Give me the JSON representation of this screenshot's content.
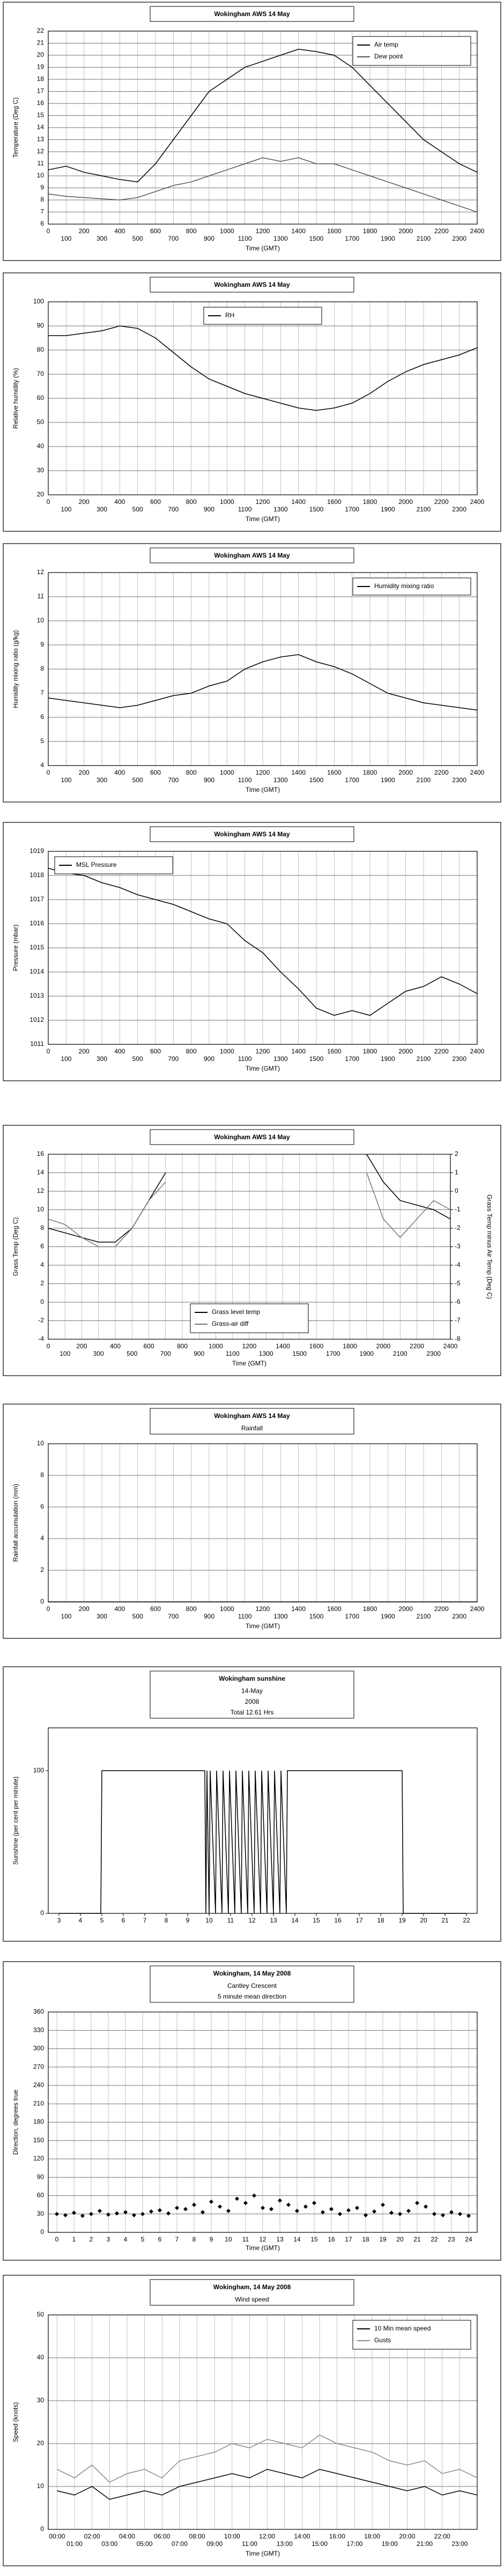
{
  "chart_data": [
    {
      "type": "line",
      "title": "Wokingham AWS 14 May",
      "x_label": "Time (GMT)",
      "y_label": "Temperature (Deg C)",
      "x": [
        0,
        100,
        200,
        300,
        400,
        500,
        600,
        700,
        800,
        900,
        1000,
        1100,
        1200,
        1300,
        1400,
        1500,
        1600,
        1700,
        1800,
        1900,
        2000,
        2100,
        2200,
        2300,
        2400
      ],
      "series": [
        {
          "name": "Air temp",
          "color": "#000000",
          "values": [
            10.5,
            10.8,
            10.3,
            10.0,
            9.7,
            9.5,
            11.0,
            13.0,
            15.0,
            17.0,
            18.0,
            19.0,
            19.5,
            20.0,
            20.5,
            20.3,
            20.0,
            19.0,
            17.5,
            16.0,
            14.5,
            13.0,
            12.0,
            11.0,
            10.3
          ]
        },
        {
          "name": "Dew point",
          "color": "#555555",
          "values": [
            8.5,
            8.3,
            8.2,
            8.1,
            8.0,
            8.2,
            8.7,
            9.2,
            9.5,
            10.0,
            10.5,
            11.0,
            11.5,
            11.2,
            11.5,
            11.0,
            11.0,
            10.5,
            10.0,
            9.5,
            9.0,
            8.5,
            8.0,
            7.5,
            7.0
          ]
        }
      ],
      "xlim": [
        0,
        2400
      ],
      "xticks": [
        0,
        100,
        200,
        300,
        400,
        500,
        600,
        700,
        800,
        900,
        1000,
        1100,
        1200,
        1300,
        1400,
        1500,
        1600,
        1700,
        1800,
        1900,
        2000,
        2100,
        2200,
        2300,
        2400
      ],
      "ylim": [
        6,
        22
      ],
      "yticks": [
        6,
        7,
        8,
        9,
        10,
        11,
        12,
        13,
        14,
        15,
        16,
        17,
        18,
        19,
        20,
        21,
        22
      ],
      "grid": true,
      "stagger": true,
      "legend": "upper right"
    },
    {
      "type": "line",
      "title": "Wokingham AWS 14 May",
      "x_label": "Time (GMT)",
      "y_label": "Relative humidity (%)",
      "x": [
        0,
        100,
        200,
        300,
        400,
        500,
        600,
        700,
        800,
        900,
        1000,
        1100,
        1200,
        1300,
        1400,
        1500,
        1600,
        1700,
        1800,
        1900,
        2000,
        2100,
        2200,
        2300,
        2400
      ],
      "series": [
        {
          "name": "RH",
          "color": "#000000",
          "values": [
            86,
            86,
            87,
            88,
            90,
            89,
            85,
            79,
            73,
            68,
            65,
            62,
            60,
            58,
            56,
            55,
            56,
            58,
            62,
            67,
            71,
            74,
            76,
            78,
            81
          ]
        }
      ],
      "xlim": [
        0,
        2400
      ],
      "xticks": [
        0,
        100,
        200,
        300,
        400,
        500,
        600,
        700,
        800,
        900,
        1000,
        1100,
        1200,
        1300,
        1400,
        1500,
        1600,
        1700,
        1800,
        1900,
        2000,
        2100,
        2200,
        2300,
        2400
      ],
      "ylim": [
        20,
        100
      ],
      "yticks": [
        20,
        30,
        40,
        50,
        60,
        70,
        80,
        90,
        100
      ],
      "grid": true,
      "stagger": true,
      "legend": "upper center"
    },
    {
      "type": "line",
      "title": "Wokingham AWS 14 May",
      "x_label": "Time (GMT)",
      "y_label": "Humidity mixing ratio (g/kg)",
      "x": [
        0,
        100,
        200,
        300,
        400,
        500,
        600,
        700,
        800,
        900,
        1000,
        1100,
        1200,
        1300,
        1400,
        1500,
        1600,
        1700,
        1800,
        1900,
        2000,
        2100,
        2200,
        2300,
        2400
      ],
      "series": [
        {
          "name": "Humidity mixing ratio",
          "color": "#000000",
          "values": [
            6.8,
            6.7,
            6.6,
            6.5,
            6.4,
            6.5,
            6.7,
            6.9,
            7.0,
            7.3,
            7.5,
            8.0,
            8.3,
            8.5,
            8.6,
            8.3,
            8.1,
            7.8,
            7.4,
            7.0,
            6.8,
            6.6,
            6.5,
            6.4,
            6.3
          ]
        }
      ],
      "xlim": [
        0,
        2400
      ],
      "xticks": [
        0,
        100,
        200,
        300,
        400,
        500,
        600,
        700,
        800,
        900,
        1000,
        1100,
        1200,
        1300,
        1400,
        1500,
        1600,
        1700,
        1800,
        1900,
        2000,
        2100,
        2200,
        2300,
        2400
      ],
      "ylim": [
        4,
        12
      ],
      "yticks": [
        4,
        5,
        6,
        7,
        8,
        9,
        10,
        11,
        12
      ],
      "grid": true,
      "stagger": true,
      "legend": "upper right"
    },
    {
      "type": "line",
      "title": "Wokingham AWS 14 May",
      "x_label": "Time (GMT)",
      "y_label": "Pressure (mbar)",
      "x": [
        0,
        100,
        200,
        300,
        400,
        500,
        600,
        700,
        800,
        900,
        1000,
        1100,
        1200,
        1300,
        1400,
        1500,
        1600,
        1700,
        1800,
        1900,
        2000,
        2100,
        2200,
        2300,
        2400
      ],
      "series": [
        {
          "name": "MSL Pressure",
          "color": "#000000",
          "values": [
            1018.3,
            1018.1,
            1018.0,
            1017.7,
            1017.5,
            1017.2,
            1017.0,
            1016.8,
            1016.5,
            1016.2,
            1016.0,
            1015.3,
            1014.8,
            1014.0,
            1013.3,
            1012.5,
            1012.2,
            1012.4,
            1012.2,
            1012.7,
            1013.2,
            1013.4,
            1013.8,
            1013.5,
            1013.1
          ]
        }
      ],
      "xlim": [
        0,
        2400
      ],
      "xticks": [
        0,
        100,
        200,
        300,
        400,
        500,
        600,
        700,
        800,
        900,
        1000,
        1100,
        1200,
        1300,
        1400,
        1500,
        1600,
        1700,
        1800,
        1900,
        2000,
        2100,
        2200,
        2300,
        2400
      ],
      "ylim": [
        1011,
        1019
      ],
      "yticks": [
        1011,
        1012,
        1013,
        1014,
        1015,
        1016,
        1017,
        1018,
        1019
      ],
      "grid": true,
      "stagger": true,
      "legend": "upper left"
    },
    {
      "type": "line",
      "title": "Wokingham AWS 14 May",
      "x_label": "Time (GMT)",
      "y_label": "Grass Temp (Deg C)",
      "y2_label": "Grass Temp minus Air Temp (Deg C)",
      "x": [
        0,
        100,
        200,
        300,
        400,
        500,
        600,
        700,
        800,
        900,
        1000,
        1100,
        1200,
        1300,
        1400,
        1500,
        1600,
        1700,
        1800,
        1900,
        2000,
        2100,
        2200,
        2300,
        2400
      ],
      "series": [
        {
          "name": "Grass level temp",
          "color": "#000000",
          "values": [
            8,
            7.5,
            7,
            6.5,
            6.5,
            8,
            11,
            14,
            null,
            null,
            null,
            null,
            null,
            null,
            null,
            null,
            null,
            null,
            null,
            16,
            13,
            11,
            10.5,
            10,
            9
          ]
        },
        {
          "name": "Grass-air diff",
          "color": "#777777",
          "axis": "y2",
          "values": [
            -1.5,
            -1.8,
            -2.5,
            -3,
            -3,
            -2,
            -0.5,
            0.5,
            null,
            null,
            null,
            null,
            null,
            null,
            null,
            null,
            null,
            null,
            null,
            1,
            -1.5,
            -2.5,
            -1.5,
            -0.5,
            -1
          ]
        }
      ],
      "xlim": [
        0,
        2400
      ],
      "xticks": [
        0,
        100,
        200,
        300,
        400,
        500,
        600,
        700,
        800,
        900,
        1000,
        1100,
        1200,
        1300,
        1400,
        1500,
        1600,
        1700,
        1800,
        1900,
        2000,
        2100,
        2200,
        2300,
        2400
      ],
      "ylim": [
        -4,
        16
      ],
      "yticks": [
        -4,
        -2,
        0,
        2,
        4,
        6,
        8,
        10,
        12,
        14,
        16
      ],
      "y2lim": [
        -8,
        2
      ],
      "y2ticks": [
        -8,
        -7,
        -6,
        -5,
        -4,
        -3,
        -2,
        -1,
        0,
        1,
        2
      ],
      "grid": true,
      "stagger": true,
      "legend": "lower center"
    },
    {
      "type": "line",
      "title": "Wokingham AWS 14 May",
      "subtitles": [
        "Rainfall"
      ],
      "x_label": "Time (GMT)",
      "y_label": "Rainfall accumulation (mm)",
      "x": [
        0,
        2400
      ],
      "series": [
        {
          "color": "#000000",
          "values": [
            0,
            0
          ]
        }
      ],
      "xlim": [
        0,
        2400
      ],
      "xticks": [
        0,
        100,
        200,
        300,
        400,
        500,
        600,
        700,
        800,
        900,
        1000,
        1100,
        1200,
        1300,
        1400,
        1500,
        1600,
        1700,
        1800,
        1900,
        2000,
        2100,
        2200,
        2300,
        2400
      ],
      "ylim": [
        0,
        10
      ],
      "yticks": [
        0,
        2,
        4,
        6,
        8,
        10
      ],
      "grid": true,
      "stagger": true
    },
    {
      "type": "line",
      "title": "Wokingham sunshine",
      "subtitles": [
        "14-May",
        "2008",
        "Total 12.61 Hrs"
      ],
      "y_label": "Sunshine (per cent per minute)",
      "x": [
        3,
        4.95,
        5,
        9.8,
        9.85,
        9.9,
        10.0,
        10.05,
        10.3,
        10.35,
        10.6,
        10.65,
        10.9,
        10.95,
        11.2,
        11.25,
        11.5,
        11.55,
        11.8,
        11.85,
        12.1,
        12.15,
        12.4,
        12.45,
        12.7,
        12.75,
        13.0,
        13.05,
        13.3,
        13.35,
        13.6,
        13.65,
        19,
        19.05,
        22
      ],
      "series": [
        {
          "color": "#000000",
          "values": [
            0,
            0,
            100,
            100,
            0,
            100,
            0,
            100,
            0,
            100,
            0,
            100,
            0,
            100,
            0,
            100,
            0,
            100,
            0,
            100,
            0,
            100,
            0,
            100,
            0,
            100,
            0,
            100,
            0,
            100,
            0,
            100,
            100,
            0,
            0
          ]
        }
      ],
      "xlim": [
        2.5,
        22.5
      ],
      "xticks": [
        3,
        4,
        5,
        6,
        7,
        8,
        9,
        10,
        11,
        12,
        13,
        14,
        15,
        16,
        17,
        18,
        19,
        20,
        21,
        22
      ],
      "ylim": [
        0,
        130
      ],
      "yticks": [
        0,
        100
      ],
      "grid": false
    },
    {
      "type": "scatter",
      "title": "Wokingham,  14 May 2008",
      "subtitles": [
        "Cantley Crescent",
        "5 minute mean direction"
      ],
      "x_label": "Time (GMT)",
      "y_label": "Direction, degrees true",
      "x": [
        0,
        0.5,
        1,
        1.5,
        2,
        2.5,
        3,
        3.5,
        4,
        4.5,
        5,
        5.5,
        6,
        6.5,
        7,
        7.5,
        8,
        8.5,
        9,
        9.5,
        10,
        10.5,
        11,
        11.5,
        12,
        12.5,
        13,
        13.5,
        14,
        14.5,
        15,
        15.5,
        16,
        16.5,
        17,
        17.5,
        18,
        18.5,
        19,
        19.5,
        20,
        20.5,
        21,
        21.5,
        22,
        22.5,
        23,
        23.5,
        24
      ],
      "series": [
        {
          "color": "#000000",
          "values": [
            30,
            28,
            32,
            27,
            30,
            35,
            29,
            31,
            33,
            28,
            30,
            34,
            36,
            31,
            40,
            38,
            45,
            33,
            50,
            42,
            35,
            55,
            48,
            60,
            40,
            38,
            52,
            45,
            35,
            42,
            48,
            33,
            38,
            30,
            36,
            40,
            28,
            34,
            45,
            32,
            30,
            35,
            48,
            42,
            30,
            28,
            33,
            30,
            27
          ]
        }
      ],
      "xlim": [
        -0.5,
        24.5
      ],
      "xticks": [
        0,
        1,
        2,
        3,
        4,
        5,
        6,
        7,
        8,
        9,
        10,
        11,
        12,
        13,
        14,
        15,
        16,
        17,
        18,
        19,
        20,
        21,
        22,
        23,
        24
      ],
      "ylim": [
        0,
        360
      ],
      "yticks": [
        0,
        30,
        60,
        90,
        120,
        150,
        180,
        210,
        240,
        270,
        300,
        330,
        360
      ],
      "grid": true
    },
    {
      "type": "line",
      "title": "Wokingham,  14 May 2008",
      "subtitles": [
        "Wind speed"
      ],
      "x_label": "Time (GMT)",
      "y_label": "Speed (knots)",
      "x": [
        0,
        1,
        2,
        3,
        4,
        5,
        6,
        7,
        8,
        9,
        10,
        11,
        12,
        13,
        14,
        15,
        16,
        17,
        18,
        19,
        20,
        21,
        22,
        23,
        24
      ],
      "series": [
        {
          "name": "10 Min mean speed",
          "color": "#000000",
          "values": [
            9,
            8,
            10,
            7,
            8,
            9,
            8,
            10,
            11,
            12,
            13,
            12,
            14,
            13,
            12,
            14,
            13,
            12,
            11,
            10,
            9,
            10,
            8,
            9,
            8
          ]
        },
        {
          "name": "Gusts",
          "color": "#888888",
          "values": [
            14,
            12,
            15,
            11,
            13,
            14,
            12,
            16,
            17,
            18,
            20,
            19,
            21,
            20,
            19,
            22,
            20,
            19,
            18,
            16,
            15,
            16,
            13,
            14,
            12
          ]
        }
      ],
      "xlim": [
        -0.5,
        24
      ],
      "xticks": [
        {
          "value": 0,
          "label": "00:00"
        },
        {
          "value": 1,
          "label": "01:00"
        },
        {
          "value": 2,
          "label": "02:00"
        },
        {
          "value": 3,
          "label": "03:00"
        },
        {
          "value": 4,
          "label": "04:00"
        },
        {
          "value": 5,
          "label": "05:00"
        },
        {
          "value": 6,
          "label": "06:00"
        },
        {
          "value": 7,
          "label": "07:00"
        },
        {
          "value": 8,
          "label": "08:00"
        },
        {
          "value": 9,
          "label": "09:00"
        },
        {
          "value": 10,
          "label": "10:00"
        },
        {
          "value": 11,
          "label": "11:00"
        },
        {
          "value": 12,
          "label": "12:00"
        },
        {
          "value": 13,
          "label": "13:00"
        },
        {
          "value": 14,
          "label": "14:00"
        },
        {
          "value": 15,
          "label": "15:00"
        },
        {
          "value": 16,
          "label": "16:00"
        },
        {
          "value": 17,
          "label": "17:00"
        },
        {
          "value": 18,
          "label": "18:00"
        },
        {
          "value": 19,
          "label": "19:00"
        },
        {
          "value": 20,
          "label": "20:00"
        },
        {
          "value": 21,
          "label": "21:00"
        },
        {
          "value": 22,
          "label": "22:00"
        },
        {
          "value": 23,
          "label": "23:00"
        }
      ],
      "ylim": [
        0,
        50
      ],
      "yticks": [
        0,
        10,
        20,
        30,
        40,
        50
      ],
      "grid": true,
      "stagger": true,
      "legend": "upper right"
    }
  ]
}
